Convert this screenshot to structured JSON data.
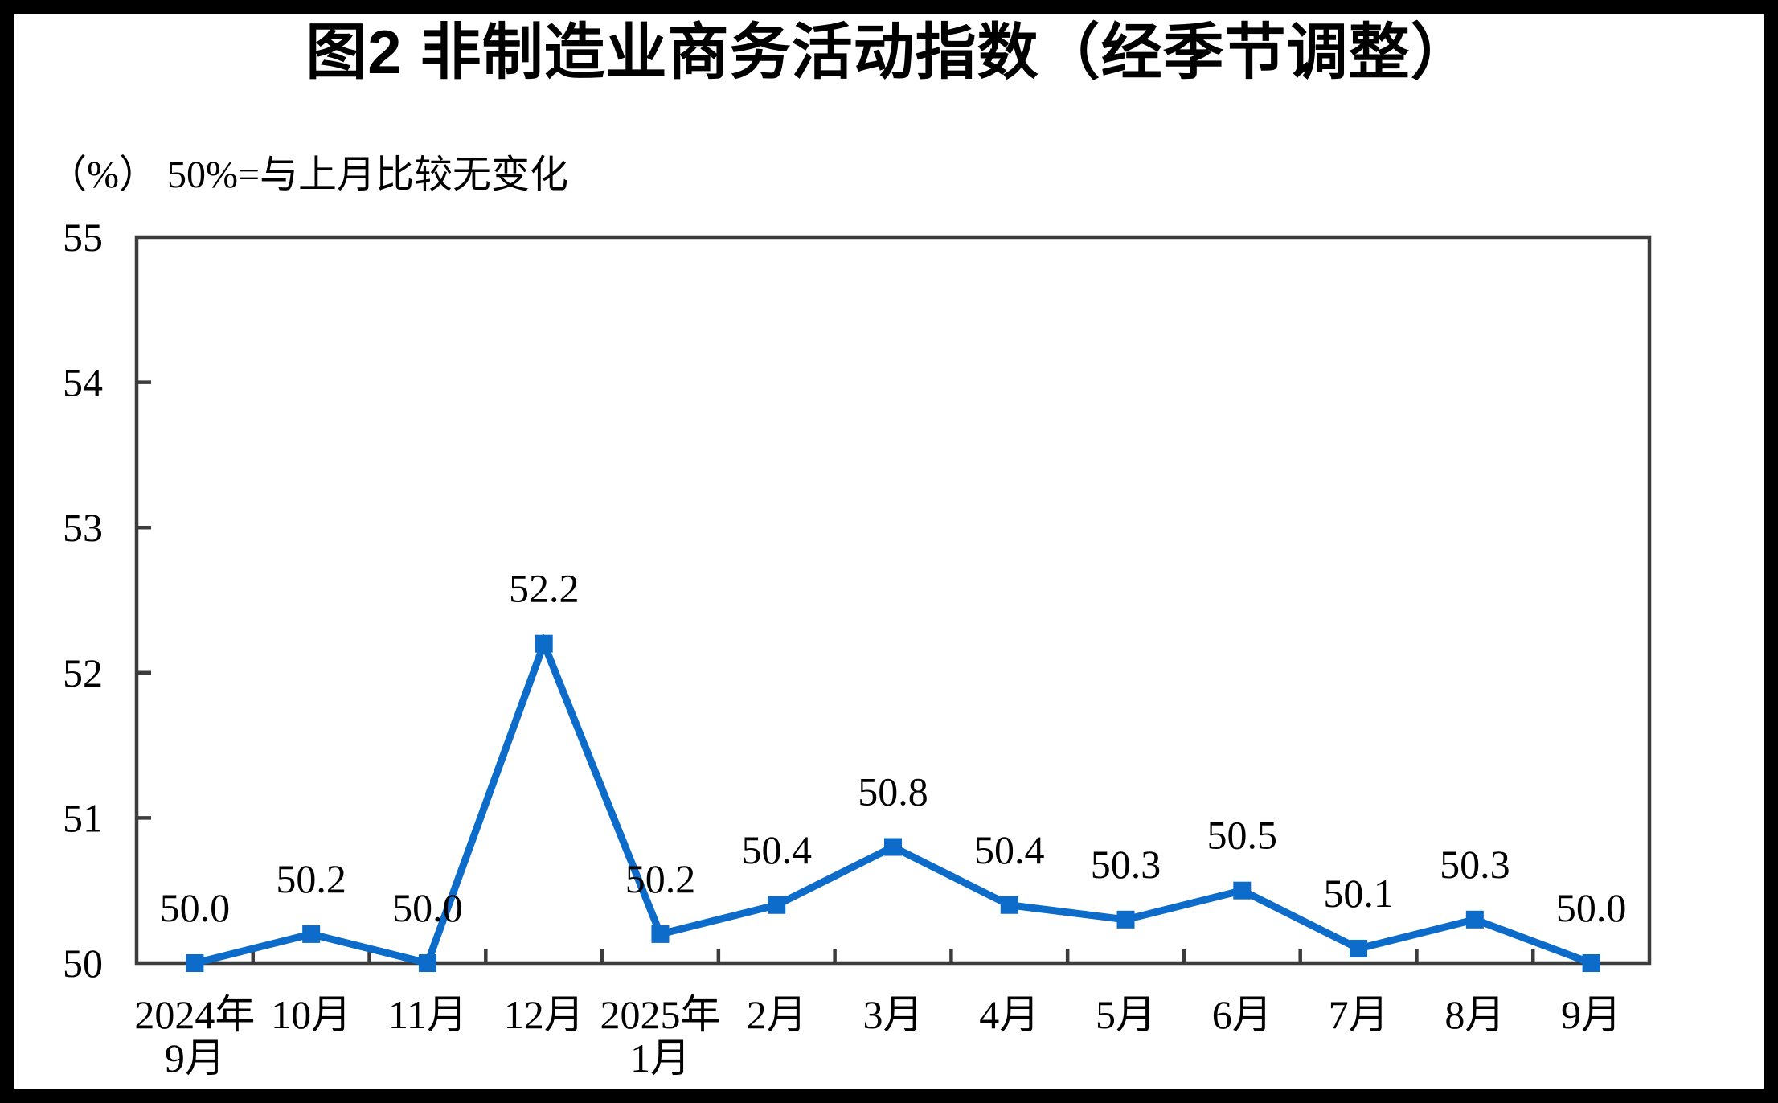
{
  "chart_data": {
    "type": "line",
    "title": "图2 非制造业商务活动指数（经季节调整）",
    "unit_note": "（%） 50%=与上月比较无变化",
    "categories": [
      [
        "2024年",
        "9月"
      ],
      [
        "10月"
      ],
      [
        "11月"
      ],
      [
        "12月"
      ],
      [
        "2025年",
        "1月"
      ],
      [
        "2月"
      ],
      [
        "3月"
      ],
      [
        "4月"
      ],
      [
        "5月"
      ],
      [
        "6月"
      ],
      [
        "7月"
      ],
      [
        "8月"
      ],
      [
        "9月"
      ]
    ],
    "values": [
      50.0,
      50.2,
      50.0,
      52.2,
      50.2,
      50.4,
      50.8,
      50.4,
      50.3,
      50.5,
      50.1,
      50.3,
      50.0
    ],
    "data_labels": [
      "50.0",
      "50.2",
      "50.0",
      "52.2",
      "50.2",
      "50.4",
      "50.8",
      "50.4",
      "50.3",
      "50.5",
      "50.1",
      "50.3",
      "50.0"
    ],
    "ylim": [
      50,
      55
    ],
    "yticks": [
      50,
      51,
      52,
      53,
      54,
      55
    ],
    "xlabel": "",
    "ylabel": "",
    "grid": false,
    "legend": "none",
    "marker": "square",
    "line_color": "#0d6bc9",
    "axis_color": "#3c3c3c",
    "text_color": "#000000",
    "background": "#ffffff",
    "frame_color": "#000000"
  }
}
